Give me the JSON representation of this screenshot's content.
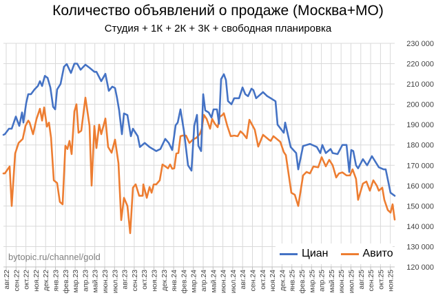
{
  "chart_data": {
    "type": "line",
    "title": "Количество объявлений о продаже (Москва+МО)",
    "subtitle": "Студия + 1К + 2К + 3К + свободная планировка",
    "watermark": "bytopic.ru/channel/gold",
    "xlabel": "",
    "ylabel": "",
    "grid": true,
    "legend_position": "bottom-right",
    "x_categories": [
      "авг.22",
      "сен.22",
      "окт.22",
      "ноя.22",
      "дек.22",
      "янв.23",
      "фев.23",
      "мар.23",
      "апр.23",
      "май.23",
      "июн.23",
      "июл.23",
      "авг.23",
      "сен.23",
      "окт.23",
      "ноя.23",
      "дек.23",
      "янв.24",
      "фев.24",
      "мар.24",
      "апр.24",
      "май.24",
      "июн.24",
      "июл.24",
      "авг.24",
      "сен.24",
      "окт.24",
      "ноя.24",
      "дек.24",
      "янв.25",
      "фев.25",
      "мар.25",
      "апр.25",
      "май.25",
      "июн.25",
      "июл.25",
      "авг.25",
      "сен.25",
      "окт.25",
      "ноя.25"
    ],
    "x_note": "x values are month index from авг.22 (0) to ноя.25 (39)",
    "xlim": [
      -0.28,
      39.44
    ],
    "ylim": [
      120000,
      230000
    ],
    "yticks": [
      120000,
      130000,
      140000,
      150000,
      160000,
      170000,
      180000,
      190000,
      200000,
      210000,
      220000,
      230000
    ],
    "ytick_labels": [
      "120 000",
      "130 000",
      "140 000",
      "150 000",
      "160 000",
      "170 000",
      "180 000",
      "190 000",
      "200 000",
      "210 000",
      "220 000",
      "230 000"
    ],
    "series": [
      {
        "name": "Циан",
        "color": "#4472C4",
        "points": [
          [
            -0.28,
            185000
          ],
          [
            -0.14,
            185300
          ],
          [
            0.28,
            188000
          ],
          [
            0.56,
            188000
          ],
          [
            0.98,
            194000
          ],
          [
            1.33,
            189400
          ],
          [
            1.61,
            196000
          ],
          [
            1.75,
            191000
          ],
          [
            2.03,
            200600
          ],
          [
            2.24,
            205000
          ],
          [
            2.52,
            205000
          ],
          [
            2.87,
            207300
          ],
          [
            3.22,
            209000
          ],
          [
            3.43,
            211400
          ],
          [
            3.64,
            209000
          ],
          [
            3.92,
            214000
          ],
          [
            4.2,
            213000
          ],
          [
            4.48,
            208300
          ],
          [
            4.76,
            198800
          ],
          [
            4.97,
            197500
          ],
          [
            5.17,
            207300
          ],
          [
            5.52,
            210000
          ],
          [
            5.87,
            218500
          ],
          [
            6.15,
            219800
          ],
          [
            6.57,
            215400
          ],
          [
            6.92,
            220000
          ],
          [
            7.2,
            220000
          ],
          [
            7.55,
            217000
          ],
          [
            8.04,
            219500
          ],
          [
            8.46,
            218000
          ],
          [
            8.95,
            216000
          ],
          [
            9.16,
            216000
          ],
          [
            9.65,
            211400
          ],
          [
            10.07,
            215000
          ],
          [
            10.42,
            206600
          ],
          [
            10.77,
            208700
          ],
          [
            11.05,
            208000
          ],
          [
            11.26,
            203000
          ],
          [
            11.47,
            197000
          ],
          [
            11.75,
            185300
          ],
          [
            11.96,
            195500
          ],
          [
            12.31,
            194700
          ],
          [
            12.66,
            184300
          ],
          [
            12.87,
            188000
          ],
          [
            13.36,
            184300
          ],
          [
            13.57,
            179000
          ],
          [
            14.06,
            181000
          ],
          [
            14.55,
            179000
          ],
          [
            15.24,
            177000
          ],
          [
            15.66,
            178000
          ],
          [
            16.15,
            183000
          ],
          [
            16.5,
            181000
          ],
          [
            16.85,
            177500
          ],
          [
            17.2,
            189700
          ],
          [
            17.41,
            191000
          ],
          [
            17.69,
            197500
          ],
          [
            18.04,
            187000
          ],
          [
            18.46,
            170000
          ],
          [
            18.81,
            167400
          ],
          [
            19.09,
            189400
          ],
          [
            19.37,
            194800
          ],
          [
            19.51,
            179600
          ],
          [
            19.79,
            177000
          ],
          [
            20.0,
            205000
          ],
          [
            20.21,
            197000
          ],
          [
            20.56,
            196000
          ],
          [
            20.84,
            193500
          ],
          [
            21.05,
            197500
          ],
          [
            21.4,
            197500
          ],
          [
            21.61,
            190400
          ],
          [
            21.82,
            212400
          ],
          [
            22.1,
            214800
          ],
          [
            22.31,
            212000
          ],
          [
            22.52,
            201600
          ],
          [
            22.87,
            200000
          ],
          [
            23.15,
            203000
          ],
          [
            23.64,
            203000
          ],
          [
            23.99,
            208300
          ],
          [
            24.27,
            205000
          ],
          [
            24.55,
            204000
          ],
          [
            24.9,
            207700
          ],
          [
            25.1,
            207000
          ],
          [
            25.38,
            203000
          ],
          [
            26.08,
            206000
          ],
          [
            26.5,
            204000
          ],
          [
            26.85,
            203000
          ],
          [
            27.34,
            201500
          ],
          [
            27.55,
            190000
          ],
          [
            28.18,
            186000
          ],
          [
            28.32,
            191000
          ],
          [
            28.88,
            179000
          ],
          [
            29.44,
            176000
          ],
          [
            29.65,
            168000
          ],
          [
            30.14,
            179500
          ],
          [
            30.84,
            180500
          ],
          [
            31.54,
            179000
          ],
          [
            31.89,
            176000
          ],
          [
            32.1,
            180000
          ],
          [
            32.45,
            176000
          ],
          [
            32.94,
            178000
          ],
          [
            33.15,
            176000
          ],
          [
            33.64,
            175500
          ],
          [
            34.13,
            180000
          ],
          [
            34.55,
            180000
          ],
          [
            34.83,
            166700
          ],
          [
            35.03,
            177500
          ],
          [
            35.24,
            177000
          ],
          [
            35.52,
            170000
          ],
          [
            35.73,
            168500
          ],
          [
            36.22,
            173000
          ],
          [
            36.64,
            170000
          ],
          [
            37.13,
            174500
          ],
          [
            37.83,
            169000
          ],
          [
            38.32,
            168000
          ],
          [
            38.53,
            168000
          ],
          [
            39.02,
            156500
          ],
          [
            39.44,
            155000
          ]
        ]
      },
      {
        "name": "Авито",
        "color": "#ED7D31",
        "points": [
          [
            -0.28,
            166000
          ],
          [
            -0.14,
            166000
          ],
          [
            0.35,
            169400
          ],
          [
            0.56,
            150000
          ],
          [
            0.91,
            175800
          ],
          [
            1.26,
            181000
          ],
          [
            1.68,
            183000
          ],
          [
            1.96,
            189400
          ],
          [
            2.24,
            192000
          ],
          [
            2.38,
            191000
          ],
          [
            2.73,
            185300
          ],
          [
            3.08,
            192800
          ],
          [
            3.43,
            197800
          ],
          [
            3.64,
            192000
          ],
          [
            3.85,
            198500
          ],
          [
            4.13,
            189000
          ],
          [
            4.34,
            191000
          ],
          [
            4.55,
            183600
          ],
          [
            4.83,
            162600
          ],
          [
            5.17,
            161300
          ],
          [
            5.45,
            152000
          ],
          [
            5.73,
            150800
          ],
          [
            6.01,
            179600
          ],
          [
            6.22,
            178000
          ],
          [
            6.43,
            182000
          ],
          [
            6.64,
            175500
          ],
          [
            6.92,
            196500
          ],
          [
            7.13,
            200000
          ],
          [
            7.34,
            186000
          ],
          [
            7.62,
            187000
          ],
          [
            8.04,
            203300
          ],
          [
            8.46,
            189400
          ],
          [
            8.67,
            160000
          ],
          [
            8.95,
            189400
          ],
          [
            9.16,
            178500
          ],
          [
            9.44,
            190000
          ],
          [
            9.65,
            185300
          ],
          [
            10.07,
            193000
          ],
          [
            10.35,
            179000
          ],
          [
            10.7,
            176200
          ],
          [
            11.05,
            182600
          ],
          [
            11.4,
            171000
          ],
          [
            11.68,
            143000
          ],
          [
            11.96,
            154000
          ],
          [
            12.31,
            150000
          ],
          [
            12.59,
            136600
          ],
          [
            12.87,
            159000
          ],
          [
            13.15,
            160600
          ],
          [
            13.5,
            155000
          ],
          [
            13.85,
            155000
          ],
          [
            13.92,
            160600
          ],
          [
            14.27,
            154000
          ],
          [
            14.55,
            159300
          ],
          [
            14.76,
            156500
          ],
          [
            14.97,
            160600
          ],
          [
            15.24,
            160600
          ],
          [
            15.59,
            162600
          ],
          [
            15.87,
            170400
          ],
          [
            16.15,
            169500
          ],
          [
            16.43,
            168500
          ],
          [
            16.64,
            170400
          ],
          [
            16.85,
            168300
          ],
          [
            17.06,
            168500
          ],
          [
            17.27,
            175800
          ],
          [
            17.48,
            176000
          ],
          [
            17.69,
            184300
          ],
          [
            17.9,
            184600
          ],
          [
            18.25,
            184600
          ],
          [
            18.6,
            181000
          ],
          [
            18.95,
            182600
          ],
          [
            19.3,
            183500
          ],
          [
            19.65,
            185300
          ],
          [
            19.86,
            188000
          ],
          [
            20.07,
            194800
          ],
          [
            20.35,
            192800
          ],
          [
            20.7,
            188000
          ],
          [
            20.91,
            192800
          ],
          [
            21.19,
            190400
          ],
          [
            21.47,
            188700
          ],
          [
            21.68,
            193800
          ],
          [
            21.96,
            194800
          ],
          [
            22.1,
            195600
          ],
          [
            22.45,
            189400
          ],
          [
            22.8,
            184300
          ],
          [
            23.15,
            184600
          ],
          [
            23.5,
            184300
          ],
          [
            23.78,
            186700
          ],
          [
            24.06,
            185500
          ],
          [
            24.41,
            183300
          ],
          [
            24.69,
            192400
          ],
          [
            25.03,
            189400
          ],
          [
            25.24,
            187500
          ],
          [
            25.59,
            179200
          ],
          [
            26.08,
            185000
          ],
          [
            26.64,
            182700
          ],
          [
            26.85,
            182000
          ],
          [
            27.13,
            184300
          ],
          [
            27.83,
            181500
          ],
          [
            28.18,
            176500
          ],
          [
            28.39,
            175000
          ],
          [
            28.95,
            156500
          ],
          [
            29.3,
            155500
          ],
          [
            29.65,
            150000
          ],
          [
            30.14,
            165000
          ],
          [
            30.49,
            166700
          ],
          [
            30.84,
            166000
          ],
          [
            31.19,
            169400
          ],
          [
            31.68,
            169000
          ],
          [
            32.03,
            174000
          ],
          [
            32.45,
            169500
          ],
          [
            32.8,
            172700
          ],
          [
            33.15,
            170000
          ],
          [
            33.5,
            164000
          ],
          [
            33.78,
            166000
          ],
          [
            34.13,
            166500
          ],
          [
            34.55,
            165000
          ],
          [
            34.9,
            165000
          ],
          [
            35.17,
            168000
          ],
          [
            35.52,
            163300
          ],
          [
            35.73,
            153000
          ],
          [
            36.22,
            161000
          ],
          [
            36.57,
            162000
          ],
          [
            36.92,
            157500
          ],
          [
            37.27,
            162600
          ],
          [
            37.62,
            160000
          ],
          [
            37.83,
            157500
          ],
          [
            38.18,
            159000
          ],
          [
            38.39,
            153000
          ],
          [
            38.74,
            148000
          ],
          [
            39.02,
            146700
          ],
          [
            39.23,
            150800
          ],
          [
            39.44,
            143300
          ]
        ]
      }
    ]
  }
}
